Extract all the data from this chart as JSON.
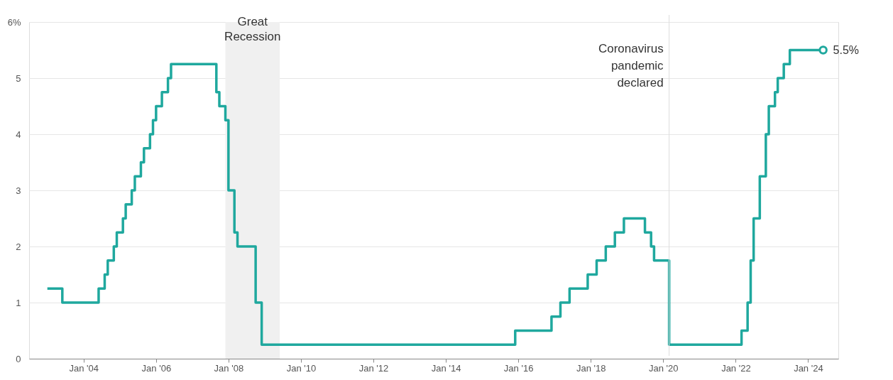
{
  "chart_data": {
    "type": "step",
    "color": "#1fa89e",
    "x": [
      "2003-01",
      "2003-06",
      "2004-06",
      "2004-08",
      "2004-09",
      "2004-11",
      "2004-12",
      "2005-02",
      "2005-03",
      "2005-05",
      "2005-06",
      "2005-08",
      "2005-09",
      "2005-11",
      "2005-12",
      "2006-01",
      "2006-03",
      "2006-05",
      "2006-06",
      "2007-09",
      "2007-10",
      "2007-12",
      "2008-01",
      "2008-03",
      "2008-04",
      "2008-10",
      "2008-12",
      "2015-12",
      "2016-12",
      "2017-03",
      "2017-06",
      "2017-12",
      "2018-03",
      "2018-06",
      "2018-09",
      "2018-12",
      "2019-07",
      "2019-09",
      "2019-10",
      "2020-03",
      "2022-03",
      "2022-05",
      "2022-06",
      "2022-07",
      "2022-09",
      "2022-11",
      "2022-12",
      "2023-02",
      "2023-03",
      "2023-05",
      "2023-07",
      "2024-06"
    ],
    "values": [
      1.25,
      1.0,
      1.25,
      1.5,
      1.75,
      2.0,
      2.25,
      2.5,
      2.75,
      3.0,
      3.25,
      3.5,
      3.75,
      4.0,
      4.25,
      4.5,
      4.75,
      5.0,
      5.25,
      4.75,
      4.5,
      4.25,
      3.0,
      2.25,
      2.0,
      1.0,
      0.25,
      0.5,
      0.75,
      1.0,
      1.25,
      1.5,
      1.75,
      2.0,
      2.25,
      2.5,
      2.25,
      2.0,
      1.75,
      0.25,
      0.5,
      1.0,
      1.75,
      2.5,
      3.25,
      4.0,
      4.5,
      4.75,
      5.0,
      5.25,
      5.5,
      5.5
    ],
    "xlim": [
      "2002-07",
      "2024-11"
    ],
    "xticks": [
      {
        "value": "2004-01",
        "label": "Jan '04"
      },
      {
        "value": "2006-01",
        "label": "Jan '06"
      },
      {
        "value": "2008-01",
        "label": "Jan '08"
      },
      {
        "value": "2010-01",
        "label": "Jan '10"
      },
      {
        "value": "2012-01",
        "label": "Jan '12"
      },
      {
        "value": "2014-01",
        "label": "Jan '14"
      },
      {
        "value": "2016-01",
        "label": "Jan '16"
      },
      {
        "value": "2018-01",
        "label": "Jan '18"
      },
      {
        "value": "2020-01",
        "label": "Jan '20"
      },
      {
        "value": "2022-01",
        "label": "Jan '22"
      },
      {
        "value": "2024-01",
        "label": "Jan '24"
      }
    ],
    "ylim": [
      0,
      6
    ],
    "yticks": [
      0,
      1,
      2,
      3,
      4,
      5,
      {
        "value": 6,
        "label": "6%"
      }
    ],
    "grid": "y",
    "line_style": "solid",
    "bands": [
      {
        "axis": "x",
        "from": "2007-12",
        "to": "2009-06",
        "label": "Great Recession",
        "color": "#f0f0f0"
      }
    ],
    "ref_lines": [
      {
        "axis": "x",
        "value": "2020-03",
        "label": "Coronavirus pandemic declared",
        "color": "#dddddd"
      }
    ],
    "annotations": [
      {
        "text": "5.5%",
        "x": "2024-06",
        "y": 5.5
      }
    ]
  }
}
